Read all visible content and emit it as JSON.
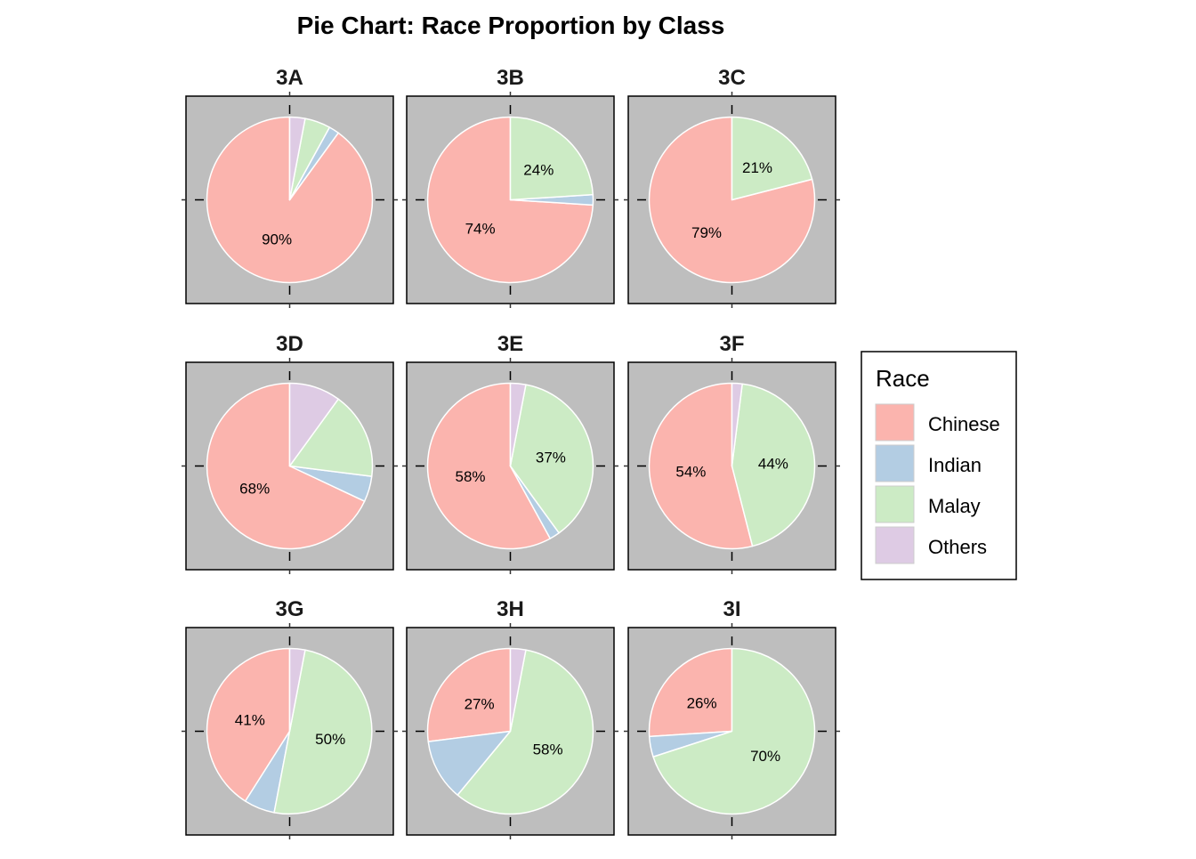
{
  "chart_data": {
    "type": "pie",
    "title": "Pie Chart: Race Proportion by Class",
    "legend": {
      "title": "Race",
      "position": "right",
      "items": [
        {
          "name": "Chinese",
          "color": "#FBB4AE"
        },
        {
          "name": "Indian",
          "color": "#B3CDE3"
        },
        {
          "name": "Malay",
          "color": "#CCEBC5"
        },
        {
          "name": "Others",
          "color": "#DECBE4"
        }
      ]
    },
    "categories": [
      "Chinese",
      "Indian",
      "Malay",
      "Others"
    ],
    "panel_background": "#BEBEBE",
    "panels": [
      {
        "label": "3A",
        "values": [
          90,
          2,
          5,
          3
        ],
        "labels": [
          "90%",
          "",
          "",
          ""
        ]
      },
      {
        "label": "3B",
        "values": [
          74,
          2,
          24,
          0
        ],
        "labels": [
          "74%",
          "",
          "24%",
          ""
        ]
      },
      {
        "label": "3C",
        "values": [
          79,
          0,
          21,
          0
        ],
        "labels": [
          "79%",
          "",
          "21%",
          ""
        ]
      },
      {
        "label": "3D",
        "values": [
          68,
          5,
          17,
          10
        ],
        "labels": [
          "68%",
          "",
          "",
          ""
        ]
      },
      {
        "label": "3E",
        "values": [
          58,
          2,
          37,
          3
        ],
        "labels": [
          "58%",
          "",
          "37%",
          ""
        ]
      },
      {
        "label": "3F",
        "values": [
          54,
          0,
          44,
          2
        ],
        "labels": [
          "54%",
          "",
          "44%",
          ""
        ]
      },
      {
        "label": "3G",
        "values": [
          41,
          6,
          50,
          3
        ],
        "labels": [
          "41%",
          "",
          "50%",
          ""
        ]
      },
      {
        "label": "3H",
        "values": [
          27,
          12,
          58,
          3
        ],
        "labels": [
          "27%",
          "",
          "58%",
          ""
        ]
      },
      {
        "label": "3I",
        "values": [
          26,
          4,
          70,
          0
        ],
        "labels": [
          "26%",
          "",
          "70%",
          ""
        ]
      }
    ]
  }
}
